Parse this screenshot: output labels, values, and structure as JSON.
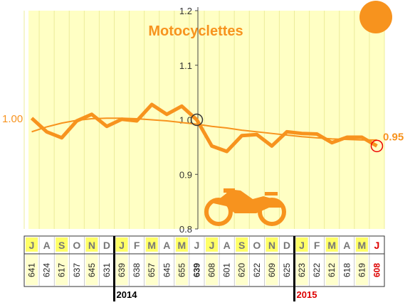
{
  "chart_data": {
    "type": "line",
    "title": "Motocyclettes",
    "categories": [
      "J",
      "A",
      "S",
      "O",
      "N",
      "D",
      "J",
      "F",
      "M",
      "A",
      "M",
      "J",
      "J",
      "A",
      "S",
      "O",
      "N",
      "D",
      "J",
      "F",
      "M",
      "A",
      "M",
      "J"
    ],
    "counts": [
      641,
      624,
      617,
      637,
      645,
      631,
      639,
      638,
      657,
      645,
      655,
      639,
      608,
      601,
      620,
      622,
      609,
      625,
      623,
      622,
      612,
      618,
      619,
      608
    ],
    "year_labels": [
      null,
      null,
      null,
      null,
      null,
      null,
      "2014",
      null,
      null,
      null,
      null,
      null,
      null,
      null,
      null,
      null,
      null,
      null,
      "2015",
      null,
      null,
      null,
      null,
      null
    ],
    "series": [
      {
        "color": "#f7931e",
        "values": [
          1.003,
          0.978,
          0.967,
          0.998,
          1.01,
          0.988,
          1.001,
          0.998,
          1.028,
          1.01,
          1.025,
          1.0,
          0.952,
          0.942,
          0.971,
          0.973,
          0.952,
          0.978,
          0.975,
          0.974,
          0.958,
          0.968,
          0.968,
          0.952
        ]
      },
      {
        "color": "#f7931e",
        "values": [
          0.978,
          0.987,
          0.994,
          0.999,
          1.002,
          1.003,
          1.003,
          1.002,
          1.0,
          0.998,
          0.995,
          0.992,
          0.988,
          0.985,
          0.981,
          0.978,
          0.975,
          0.972,
          0.969,
          0.967,
          0.965,
          0.964,
          0.963,
          0.963
        ]
      }
    ],
    "start_label": "1.00",
    "end_label": "0.95",
    "ylim": [
      0.8,
      1.2
    ],
    "yticks": [
      0.8,
      0.9,
      {
        "value": 1.0,
        "label": "1.0"
      },
      1.1,
      1.2
    ],
    "grid": true
  }
}
